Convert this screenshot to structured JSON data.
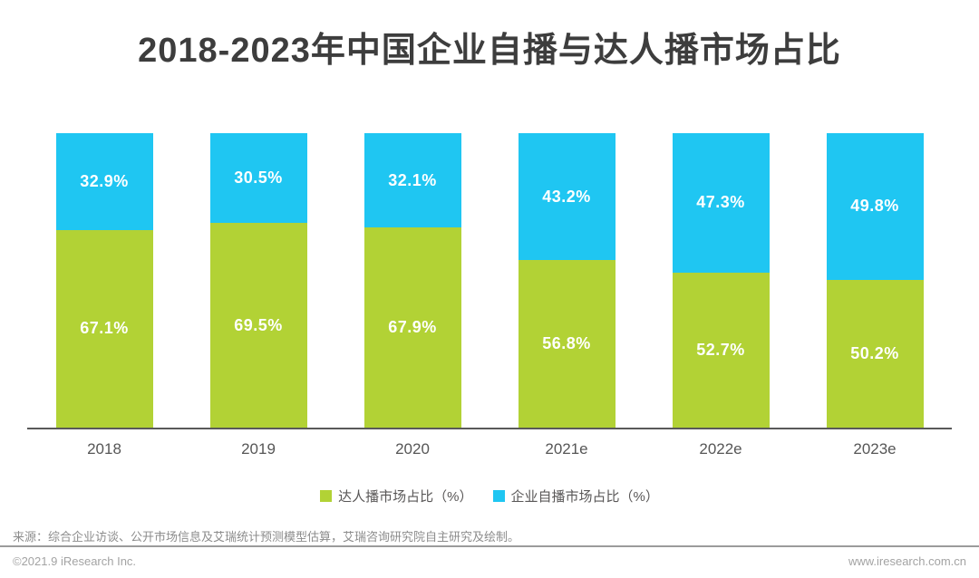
{
  "chart_data": {
    "type": "bar",
    "stacked": true,
    "percent_stacked": true,
    "title": "2018-2023年中国企业自播与达人播市场占比",
    "categories": [
      "2018",
      "2019",
      "2020",
      "2021e",
      "2022e",
      "2023e"
    ],
    "series": [
      {
        "name": "达人播市场占比（%）",
        "color": "#b2d235",
        "position": "bottom",
        "values": [
          67.1,
          69.5,
          67.9,
          56.8,
          52.7,
          50.2
        ]
      },
      {
        "name": "企业自播市场占比（%）",
        "color": "#1fc6f2",
        "position": "top",
        "values": [
          32.9,
          30.5,
          32.1,
          43.2,
          47.3,
          49.8
        ]
      }
    ],
    "value_suffix": "%",
    "xlabel": "",
    "ylabel": "",
    "ylim": [
      0,
      100
    ],
    "grid": false,
    "legend_position": "bottom"
  },
  "source_note": "来源：综合企业访谈、公开市场信息及艾瑞统计预测模型估算，艾瑞咨询研究院自主研究及绘制。",
  "footer": {
    "left": "©2021.9 iResearch Inc.",
    "right": "www.iresearch.com.cn"
  },
  "colors": {
    "influencer_green": "#b2d235",
    "enterprise_blue": "#1fc6f2",
    "title_text": "#3d3d3d",
    "axis_line": "#595959",
    "footer_text": "#a3a3a3"
  }
}
